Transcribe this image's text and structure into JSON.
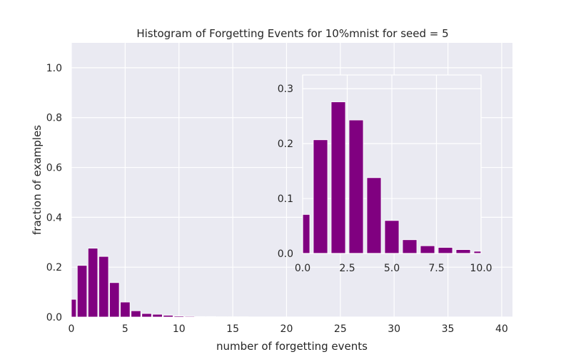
{
  "chart_data": [
    {
      "type": "bar",
      "title": "Histogram of Forgetting Events for 10%mnist for seed = 5",
      "xlabel": "number of forgetting events",
      "ylabel": "fraction of examples",
      "xlim": [
        0,
        41
      ],
      "ylim": [
        0,
        1.1
      ],
      "xticks": [
        0,
        5,
        10,
        15,
        20,
        25,
        30,
        35,
        40
      ],
      "yticks": [
        0.0,
        0.2,
        0.4,
        0.6,
        0.8,
        1.0
      ],
      "grid": true,
      "bar_width": 0.9,
      "x": [
        0,
        1,
        2,
        3,
        4,
        5,
        6,
        7,
        8,
        9,
        10,
        11,
        12,
        13,
        14,
        15,
        16
      ],
      "values": [
        0.071,
        0.207,
        0.276,
        0.243,
        0.138,
        0.06,
        0.025,
        0.014,
        0.011,
        0.007,
        0.004,
        0.003,
        0.002,
        0.002,
        0.001,
        0.001,
        0.001
      ],
      "color": "#800080"
    },
    {
      "type": "bar",
      "role": "inset",
      "xlim": [
        0,
        10
      ],
      "ylim": [
        0,
        0.325
      ],
      "xticks": [
        0.0,
        2.5,
        5.0,
        7.5,
        10.0
      ],
      "yticks": [
        0.0,
        0.1,
        0.2,
        0.3
      ],
      "grid": true,
      "bar_width": 0.8,
      "x": [
        0,
        1,
        2,
        3,
        4,
        5,
        6,
        7,
        8,
        9,
        10
      ],
      "values": [
        0.071,
        0.207,
        0.276,
        0.243,
        0.138,
        0.06,
        0.025,
        0.014,
        0.011,
        0.007,
        0.004
      ],
      "color": "#800080"
    }
  ]
}
